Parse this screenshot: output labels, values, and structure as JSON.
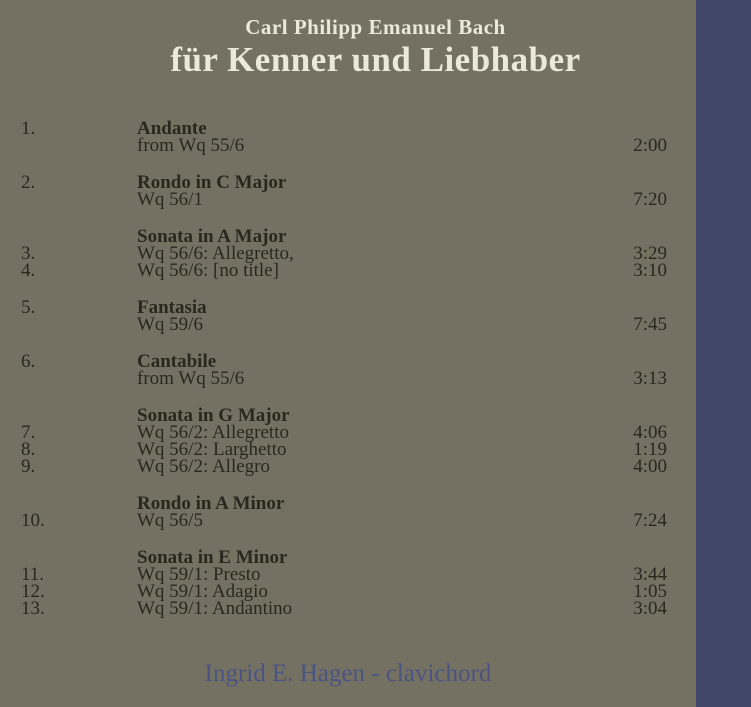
{
  "album": {
    "artist": "Carl Philipp Emanuel Bach",
    "title": "für Kenner und Liebhaber",
    "performer": "Ingrid E. Hagen - clavichord"
  },
  "colors": {
    "background": "#747162",
    "spine": "#3f4668",
    "header_text": "#ebead9",
    "track_text": "#29281f",
    "performer_text": "#4b5383"
  },
  "tracks": {
    "groups": [
      {
        "rows": [
          {
            "num": "1.",
            "text": "Andante",
            "bold": true,
            "time": ""
          },
          {
            "num": "",
            "text": "from Wq 55/6",
            "bold": false,
            "time": "2:00"
          }
        ]
      },
      {
        "rows": [
          {
            "num": "2.",
            "text": "Rondo in C Major",
            "bold": true,
            "time": ""
          },
          {
            "num": "",
            "text": "Wq 56/1",
            "bold": false,
            "time": "7:20"
          }
        ]
      },
      {
        "rows": [
          {
            "num": "",
            "text": "Sonata in A Major",
            "bold": true,
            "time": ""
          },
          {
            "num": "3.",
            "text": "Wq 56/6: Allegretto,",
            "bold": false,
            "time": "3:29"
          },
          {
            "num": "4.",
            "text": "Wq 56/6: [no title]",
            "bold": false,
            "time": "3:10"
          }
        ]
      },
      {
        "rows": [
          {
            "num": "5.",
            "text": "Fantasia",
            "bold": true,
            "time": ""
          },
          {
            "num": "",
            "text": "Wq 59/6",
            "bold": false,
            "time": "7:45"
          }
        ]
      },
      {
        "rows": [
          {
            "num": "6.",
            "text": "Cantabile",
            "bold": true,
            "time": ""
          },
          {
            "num": "",
            "text": "from Wq 55/6",
            "bold": false,
            "time": "3:13"
          }
        ]
      },
      {
        "rows": [
          {
            "num": "",
            "text": "Sonata in G Major",
            "bold": true,
            "time": ""
          },
          {
            "num": "7.",
            "text": "Wq 56/2: Allegretto",
            "bold": false,
            "time": "4:06"
          },
          {
            "num": "8.",
            "text": "Wq 56/2: Larghetto",
            "bold": false,
            "time": "1:19"
          },
          {
            "num": "9.",
            "text": "Wq 56/2: Allegro",
            "bold": false,
            "time": "4:00"
          }
        ]
      },
      {
        "rows": [
          {
            "num": "",
            "text": "Rondo in A Minor",
            "bold": true,
            "time": ""
          },
          {
            "num": "10.",
            "text": "Wq 56/5",
            "bold": false,
            "time": "7:24"
          }
        ]
      },
      {
        "rows": [
          {
            "num": "",
            "text": "Sonata in E Minor",
            "bold": true,
            "time": ""
          },
          {
            "num": "11.",
            "text": "Wq 59/1: Presto",
            "bold": false,
            "time": "3:44"
          },
          {
            "num": "12.",
            "text": "Wq 59/1: Adagio",
            "bold": false,
            "time": "1:05"
          },
          {
            "num": "13.",
            "text": "Wq 59/1: Andantino",
            "bold": false,
            "time": "3:04"
          }
        ]
      }
    ]
  }
}
